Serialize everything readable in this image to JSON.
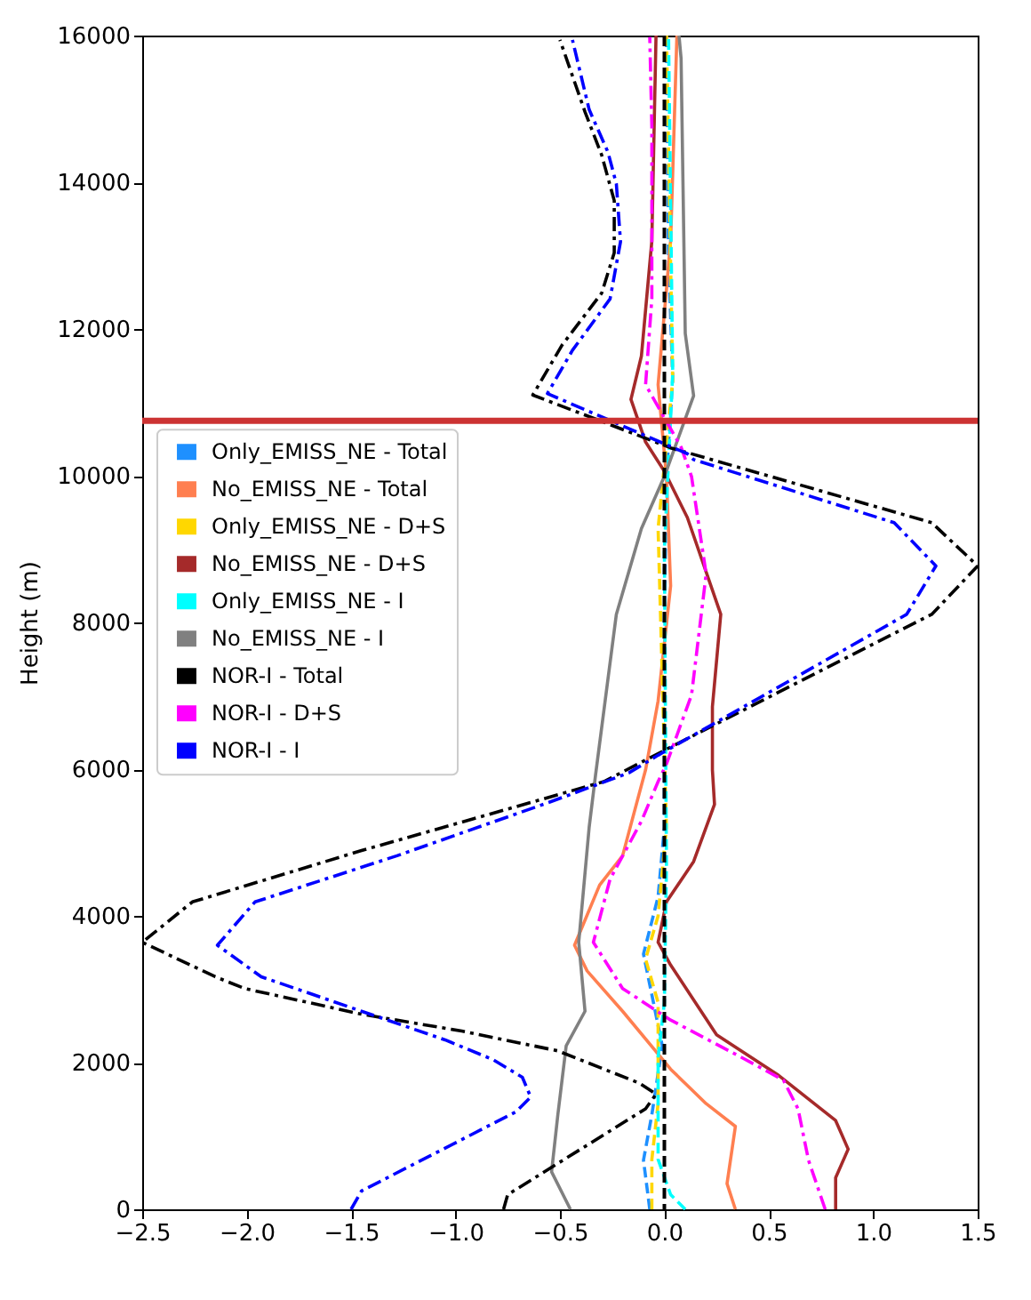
{
  "chart_data": {
    "type": "line",
    "ylabel": "Height (m)",
    "xlim": [
      -2.5,
      1.5
    ],
    "ylim": [
      0,
      16000
    ],
    "xticks": [
      {
        "value": -2.5,
        "label": "−2.5"
      },
      {
        "value": -2,
        "label": "−2.0"
      },
      {
        "value": -1.5,
        "label": "−1.5"
      },
      {
        "value": -1,
        "label": "−1.0"
      },
      {
        "value": -0.5,
        "label": "−0.5"
      },
      {
        "value": 0,
        "label": "0.0"
      },
      {
        "value": 0.5,
        "label": "0.5"
      },
      {
        "value": 1,
        "label": "1.0"
      },
      {
        "value": 1.5,
        "label": "1.5"
      }
    ],
    "yticks": [
      0,
      2000,
      4000,
      6000,
      8000,
      10000,
      12000,
      14000,
      16000
    ],
    "grid": false,
    "legend": "left",
    "marker": "none",
    "ref_lines": [
      {
        "axis": "x",
        "value": 0,
        "color": "#000000",
        "line_style": "dashed"
      },
      {
        "axis": "y",
        "value": 10750,
        "color": "#cc3333",
        "line_style": "solid"
      }
    ],
    "series": [
      {
        "name": "Only_EMISS_NE - Total",
        "color": "#1e90ff",
        "line_style": "dashed",
        "x": [
          -0.07,
          -0.1,
          -0.06,
          -0.01,
          -0.1,
          -0.03,
          0,
          0,
          0.01,
          0.04,
          0.02,
          0.01
        ],
        "values": [
          0,
          670,
          1290,
          2230,
          3480,
          4260,
          5210,
          8000,
          10000,
          11320,
          13000,
          16000
        ]
      },
      {
        "name": "No_EMISS_NE - Total",
        "color": "#ff7f50",
        "line_style": "solid",
        "x": [
          0.34,
          0.3,
          0.34,
          0.2,
          0.03,
          -0.2,
          -0.37,
          -0.43,
          -0.31,
          -0.2,
          -0.09,
          -0.03,
          0.03,
          0.01,
          -0.03,
          0.03,
          0.06
        ],
        "values": [
          0,
          350,
          1130,
          1440,
          1910,
          2700,
          3250,
          3600,
          4420,
          4820,
          5990,
          6930,
          8500,
          9990,
          11240,
          13200,
          16000
        ]
      },
      {
        "name": "Only_EMISS_NE - D+S",
        "color": "#ffd700",
        "line_style": "dashed",
        "x": [
          -0.06,
          -0.06,
          -0.03,
          -0.03,
          -0.09,
          -0.03,
          0.01,
          -0.03,
          0.04,
          0.01
        ],
        "values": [
          0,
          680,
          1440,
          2820,
          3410,
          4000,
          5210,
          9280,
          11300,
          16000
        ]
      },
      {
        "name": "No_EMISS_NE - D+S",
        "color": "#a52a2a",
        "line_style": "solid",
        "x": [
          0.82,
          0.82,
          0.88,
          0.82,
          0.54,
          0.25,
          0.03,
          -0.03,
          0.01,
          0.14,
          0.24,
          0.23,
          0.23,
          0.27,
          0.11,
          0,
          -0.09,
          -0.16,
          -0.11,
          -0.06,
          -0.04
        ],
        "values": [
          0,
          430,
          820,
          1210,
          1840,
          2380,
          3330,
          3640,
          4190,
          4740,
          5520,
          5990,
          6850,
          8110,
          9430,
          10060,
          10460,
          11040,
          11630,
          13200,
          16000
        ]
      },
      {
        "name": "Only_EMISS_NE - I",
        "color": "#00ffff",
        "line_style": "dashed",
        "x": [
          0.1,
          0.03,
          -0.03,
          -0.03,
          0,
          0.01,
          0,
          0.04,
          0.02
        ],
        "values": [
          0,
          200,
          680,
          2070,
          2820,
          4700,
          9000,
          11400,
          16000
        ]
      },
      {
        "name": "No_EMISS_NE - I",
        "color": "#808080",
        "line_style": "solid",
        "x": [
          -0.45,
          -0.54,
          -0.51,
          -0.47,
          -0.38,
          -0.41,
          -0.36,
          -0.33,
          -0.23,
          -0.11,
          0,
          0.14,
          0.1,
          0.08,
          0.07
        ],
        "values": [
          0,
          510,
          1290,
          2230,
          2700,
          3640,
          5210,
          5910,
          8110,
          9280,
          9990,
          11090,
          11940,
          15690,
          16000
        ]
      },
      {
        "name": "NOR-I - Total",
        "color": "#000000",
        "line_style": "dashdot",
        "x": [
          -0.77,
          -0.75,
          -0.09,
          -0.04,
          -0.12,
          -0.51,
          -0.97,
          -1.45,
          -2.01,
          -2.15,
          -2.5,
          -2.26,
          -1.45,
          -0.77,
          -0.29,
          0.03,
          1.28,
          1.5,
          1.28,
          0.03,
          -0.63,
          -0.49,
          -0.3,
          -0.24,
          -0.24,
          -0.3,
          -0.38,
          -0.5
        ],
        "values": [
          0,
          200,
          1370,
          1570,
          1720,
          2160,
          2430,
          2660,
          3010,
          3170,
          3640,
          4190,
          4890,
          5440,
          5830,
          6300,
          8110,
          8770,
          9360,
          10380,
          11100,
          11780,
          12490,
          13040,
          13750,
          14370,
          14960,
          15940
        ]
      },
      {
        "name": "NOR-I - D+S",
        "color": "#ff00ff",
        "line_style": "dashdot",
        "x": [
          0.77,
          0.69,
          0.64,
          0.57,
          0.37,
          0.03,
          -0.2,
          -0.34,
          -0.26,
          -0.11,
          -0.03,
          0.01,
          0.13,
          0.2,
          0.13,
          0.08,
          -0.09,
          -0.06,
          -0.06,
          -0.07
        ],
        "values": [
          0,
          670,
          1370,
          1760,
          2070,
          2580,
          3010,
          3640,
          4500,
          5290,
          5830,
          6070,
          7010,
          8660,
          9990,
          10390,
          11240,
          12410,
          14760,
          15980
        ]
      },
      {
        "name": "NOR-I - I",
        "color": "#0000ff",
        "line_style": "dashdot",
        "x": [
          -1.5,
          -1.45,
          -0.71,
          -0.64,
          -0.68,
          -0.82,
          -1.05,
          -1.45,
          -1.93,
          -2.14,
          -1.96,
          -1.28,
          -0.54,
          -0.17,
          -0.03,
          1.16,
          1.3,
          1.1,
          0.14,
          0.11,
          -0.56,
          -0.44,
          -0.26,
          -0.21,
          -0.23,
          -0.27,
          -0.36,
          -0.44
        ],
        "values": [
          0,
          250,
          1330,
          1530,
          1800,
          2040,
          2310,
          2700,
          3170,
          3600,
          4190,
          4820,
          5560,
          5950,
          6190,
          8110,
          8770,
          9360,
          10220,
          10300,
          11120,
          11710,
          12410,
          13190,
          13980,
          14410,
          14990,
          15940
        ]
      }
    ]
  }
}
